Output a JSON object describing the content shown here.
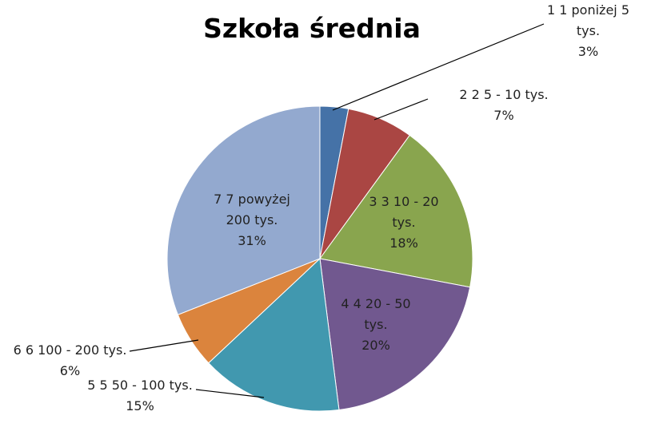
{
  "chart_data": {
    "type": "pie",
    "title": "Szkoła średnia",
    "categories": [
      "1 1 poniżej 5 tys.",
      "2 2 5 - 10 tys.",
      "3 3 10 - 20 tys.",
      "4 4 20 - 50 tys.",
      "5 5 50 - 100 tys.",
      "6 6 100 - 200 tys.",
      "7 7 powyżej 200 tys."
    ],
    "values": [
      3,
      7,
      18,
      20,
      15,
      6,
      31
    ],
    "value_labels": [
      "3%",
      "7%",
      "18%",
      "20%",
      "15%",
      "6%",
      "31%"
    ],
    "colors": [
      "#4572a7",
      "#aa4643",
      "#89a54e",
      "#71588f",
      "#4198af",
      "#db843d",
      "#93a9cf"
    ]
  }
}
